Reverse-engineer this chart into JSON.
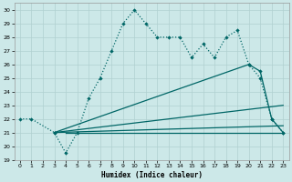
{
  "xlabel": "Humidex (Indice chaleur)",
  "bg_color": "#cce8e8",
  "grid_color": "#b0d0d0",
  "line_color": "#006666",
  "xlim_min": -0.5,
  "xlim_max": 23.5,
  "ylim_min": 19,
  "ylim_max": 30.5,
  "main_curve": {
    "x": [
      0,
      1,
      3,
      4,
      5,
      6,
      7,
      8,
      9,
      10,
      11,
      12,
      13,
      14,
      15,
      16,
      17,
      18,
      19,
      20,
      21,
      22,
      23
    ],
    "y": [
      22,
      22,
      21,
      19.5,
      21,
      23.5,
      25,
      27,
      29,
      30,
      29,
      28,
      28,
      28,
      26.5,
      27.5,
      26.5,
      28,
      28.5,
      26,
      25,
      22,
      21
    ]
  },
  "flat_line": {
    "x": [
      4,
      12,
      22,
      23
    ],
    "y": [
      21,
      21,
      21,
      21
    ]
  },
  "line_low": {
    "x": [
      3,
      23
    ],
    "y": [
      21,
      21.5
    ]
  },
  "line_mid": {
    "x": [
      3,
      23
    ],
    "y": [
      21,
      23
    ]
  },
  "line_high": {
    "x": [
      3,
      20,
      21,
      22,
      23
    ],
    "y": [
      21,
      26,
      25.5,
      22,
      21
    ]
  }
}
